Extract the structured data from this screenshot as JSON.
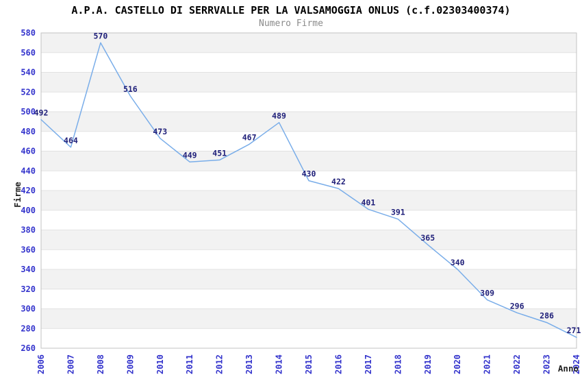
{
  "header": {
    "title": "A.P.A. CASTELLO DI SERRVALLE PER LA VALSAMOGGIA ONLUS (c.f.02303400374)",
    "subtitle": "Numero Firme"
  },
  "chart_data": {
    "type": "line",
    "title": "A.P.A. CASTELLO DI SERRVALLE PER LA VALSAMOGGIA ONLUS (c.f.02303400374)",
    "subtitle": "Numero Firme",
    "xlabel": "Anno",
    "ylabel": "Firme",
    "x": [
      "2006",
      "2007",
      "2008",
      "2009",
      "2010",
      "2011",
      "2012",
      "2013",
      "2014",
      "2015",
      "2016",
      "2017",
      "2018",
      "2019",
      "2020",
      "2021",
      "2022",
      "2023",
      "2024"
    ],
    "series": [
      {
        "name": "Numero Firme",
        "values": [
          492,
          464,
          570,
          516,
          473,
          449,
          451,
          467,
          489,
          430,
          422,
          401,
          391,
          365,
          340,
          309,
          296,
          286,
          271
        ]
      }
    ],
    "ylim": [
      260,
      580
    ],
    "ytick_step": 20,
    "grid": "horizontal gridlines with alternating shaded bands",
    "legend": "none",
    "data_labels_visible": true,
    "colors": {
      "line": "#79ade9",
      "tick_label": "#3333cc",
      "data_label": "#20207a",
      "band": "#f2f2f2",
      "gridline": "#e2e2e2",
      "plot_border": "#c3c3c3",
      "title": "#000000",
      "subtitle": "#8a8a8a",
      "axis_title": "#222222",
      "background": "#ffffff"
    }
  }
}
